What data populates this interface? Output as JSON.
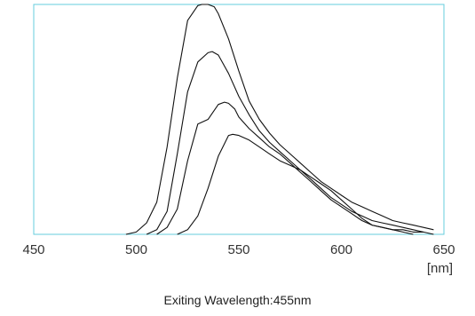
{
  "chart_data": {
    "type": "line",
    "xlabel": "[nm]",
    "ylabel": "",
    "caption": "Exiting Wavelength:455nm",
    "xlim": [
      450,
      650
    ],
    "ylim": [
      0,
      1.0
    ],
    "x_ticks": [
      "450",
      "500",
      "550",
      "600",
      "650"
    ],
    "grid": false,
    "legend": "none",
    "frame_color": "#66ccdd",
    "line_color": "#111111",
    "series": [
      {
        "x": [
          495,
          500,
          505,
          510,
          515,
          520,
          525,
          530,
          532,
          535,
          538,
          540,
          545,
          550,
          555,
          560,
          565,
          570,
          575,
          580,
          585,
          590,
          595,
          600,
          605,
          610,
          615,
          620,
          625,
          630,
          635,
          640,
          645
        ],
        "values": [
          0,
          0.01,
          0.05,
          0.14,
          0.38,
          0.68,
          0.93,
          0.995,
          1.0,
          1.0,
          0.99,
          0.96,
          0.85,
          0.71,
          0.58,
          0.5,
          0.44,
          0.39,
          0.35,
          0.31,
          0.27,
          0.23,
          0.2,
          0.17,
          0.14,
          0.12,
          0.1,
          0.08,
          0.06,
          0.05,
          0.04,
          0.03,
          0.02
        ]
      },
      {
        "x": [
          505,
          510,
          515,
          520,
          525,
          530,
          535,
          537,
          540,
          545,
          550,
          555,
          560,
          565,
          570,
          575,
          580,
          585,
          590,
          595,
          600,
          605,
          610,
          615,
          620,
          625,
          630,
          635,
          640,
          645
        ],
        "values": [
          0,
          0.02,
          0.1,
          0.35,
          0.62,
          0.75,
          0.79,
          0.795,
          0.78,
          0.7,
          0.6,
          0.52,
          0.45,
          0.4,
          0.36,
          0.32,
          0.28,
          0.24,
          0.2,
          0.16,
          0.13,
          0.1,
          0.08,
          0.06,
          0.05,
          0.04,
          0.03,
          0.02,
          0.01,
          0.0
        ]
      },
      {
        "x": [
          510,
          515,
          520,
          525,
          530,
          535,
          540,
          543,
          545,
          548,
          550,
          555,
          560,
          565,
          570,
          575,
          580,
          585,
          590,
          595,
          600,
          605,
          610,
          615,
          620,
          625,
          630,
          635,
          640
        ],
        "values": [
          0,
          0.03,
          0.11,
          0.32,
          0.48,
          0.5,
          0.565,
          0.575,
          0.57,
          0.545,
          0.51,
          0.46,
          0.42,
          0.38,
          0.35,
          0.31,
          0.27,
          0.23,
          0.19,
          0.15,
          0.12,
          0.09,
          0.06,
          0.04,
          0.03,
          0.02,
          0.02,
          0.01,
          0.01
        ]
      },
      {
        "x": [
          520,
          525,
          530,
          535,
          540,
          545,
          547,
          550,
          555,
          560,
          565,
          570,
          575,
          580,
          585,
          590,
          595,
          600,
          605,
          610,
          615,
          620,
          625,
          630,
          635
        ],
        "values": [
          0,
          0.02,
          0.08,
          0.2,
          0.34,
          0.43,
          0.435,
          0.43,
          0.41,
          0.38,
          0.35,
          0.32,
          0.3,
          0.28,
          0.25,
          0.22,
          0.19,
          0.15,
          0.11,
          0.07,
          0.04,
          0.03,
          0.02,
          0.01,
          0.0
        ]
      }
    ]
  }
}
